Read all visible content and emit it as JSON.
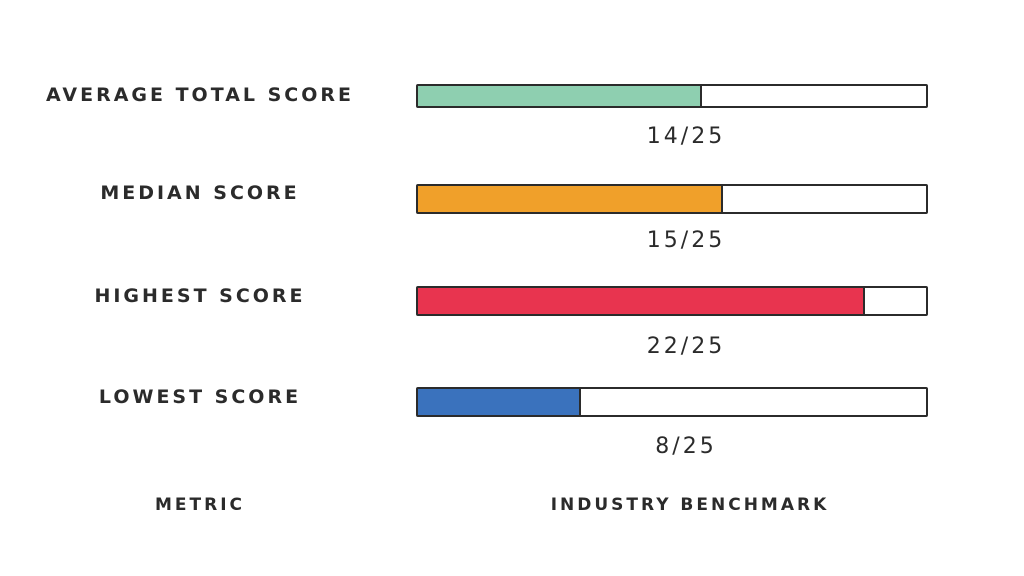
{
  "chart_data": {
    "type": "bar",
    "orientation": "horizontal",
    "max": 25,
    "categories": [
      "AVERAGE TOTAL SCORE",
      "MEDIAN SCORE",
      "HIGHEST SCORE",
      "LOWEST SCORE"
    ],
    "values": [
      14,
      15,
      22,
      8
    ],
    "value_labels": [
      "14/25",
      "15/25",
      "22/25",
      "8/25"
    ],
    "colors": [
      "#8ecfb0",
      "#f0a02a",
      "#e8344f",
      "#3a72bd"
    ],
    "xlabel": "INDUSTRY BENCHMARK",
    "ylabel": "METRIC",
    "title": ""
  },
  "footer": {
    "metric": "METRIC",
    "benchmark": "INDUSTRY BENCHMARK"
  }
}
